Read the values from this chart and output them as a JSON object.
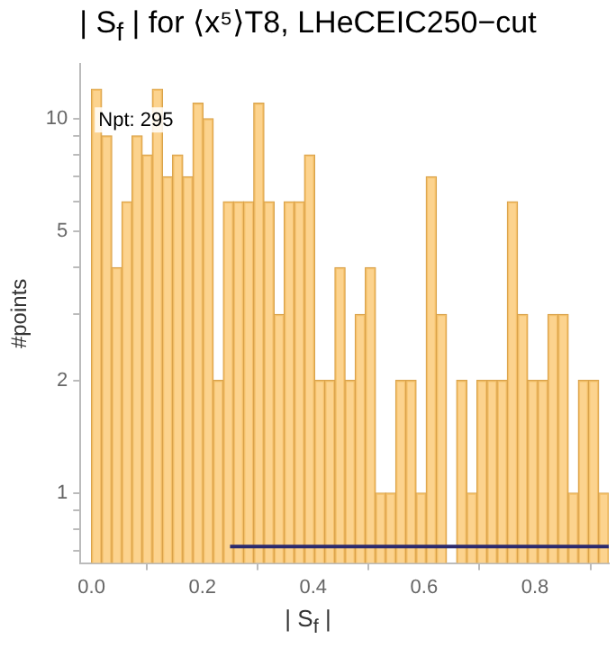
{
  "chart_data": {
    "type": "histogram",
    "title": "| S$_{f}$ | for ⟨x⁵⟩T8, LHeCEIC250−cut",
    "xlabel": "| S$_{f}$ |",
    "ylabel": "#points",
    "annotations": [
      "Npt: 295"
    ],
    "bins": [
      0,
      0.0183,
      0.0366,
      0.0549,
      0.0732,
      0.0915,
      0.1098,
      0.1281,
      0.1464,
      0.1647,
      0.183,
      0.2013,
      0.2196,
      0.2379,
      0.2562,
      0.2745,
      0.2928,
      0.3111,
      0.3294,
      0.3477,
      0.366,
      0.3843,
      0.4026,
      0.4209,
      0.4392,
      0.4575,
      0.4758,
      0.4941,
      0.5124,
      0.5307,
      0.549,
      0.5673,
      0.5856,
      0.6039,
      0.6222,
      0.6405,
      0.6588,
      0.6771,
      0.6954,
      0.7137,
      0.732,
      0.7503,
      0.7686,
      0.7869,
      0.8052,
      0.8235,
      0.8418,
      0.8601,
      0.8784,
      0.8967,
      0.915,
      0.9333
    ],
    "values": [
      12,
      9,
      4,
      6,
      9,
      8,
      12,
      7,
      8,
      7,
      11,
      10,
      2,
      6,
      6,
      6,
      11,
      6,
      3,
      6,
      6,
      8,
      2,
      2,
      4,
      2,
      3,
      4,
      1,
      1,
      2,
      2,
      1,
      7,
      3,
      null,
      2,
      1,
      2,
      2,
      2,
      6,
      3,
      2,
      2,
      3,
      3,
      1,
      2,
      2,
      1
    ],
    "color": "#fbc872",
    "series": [
      {
        "type": "line",
        "x": [
          0.25,
          0.9333
        ],
        "values": [
          0.72,
          0.72
        ],
        "color": "#2b2a6e"
      }
    ],
    "xlim": [
      -0.02,
      0.9333
    ],
    "xticks": [
      {
        "value": 0,
        "label": "0.0"
      },
      0.2,
      0.4,
      0.6,
      0.8
    ],
    "ylim": [
      0.65,
      14
    ],
    "yticks": [
      {
        "value": 0.7,
        "label": null
      },
      {
        "value": 0.8,
        "label": null
      },
      {
        "value": 0.9,
        "label": null
      },
      1,
      2,
      {
        "value": 3,
        "label": null
      },
      {
        "value": 4,
        "label": null
      },
      5,
      {
        "value": 6,
        "label": null
      },
      {
        "value": 7,
        "label": null
      },
      {
        "value": 8,
        "label": null
      },
      {
        "value": 9,
        "label": null
      },
      10
    ],
    "log": "y",
    "grid": false,
    "legend": false
  }
}
